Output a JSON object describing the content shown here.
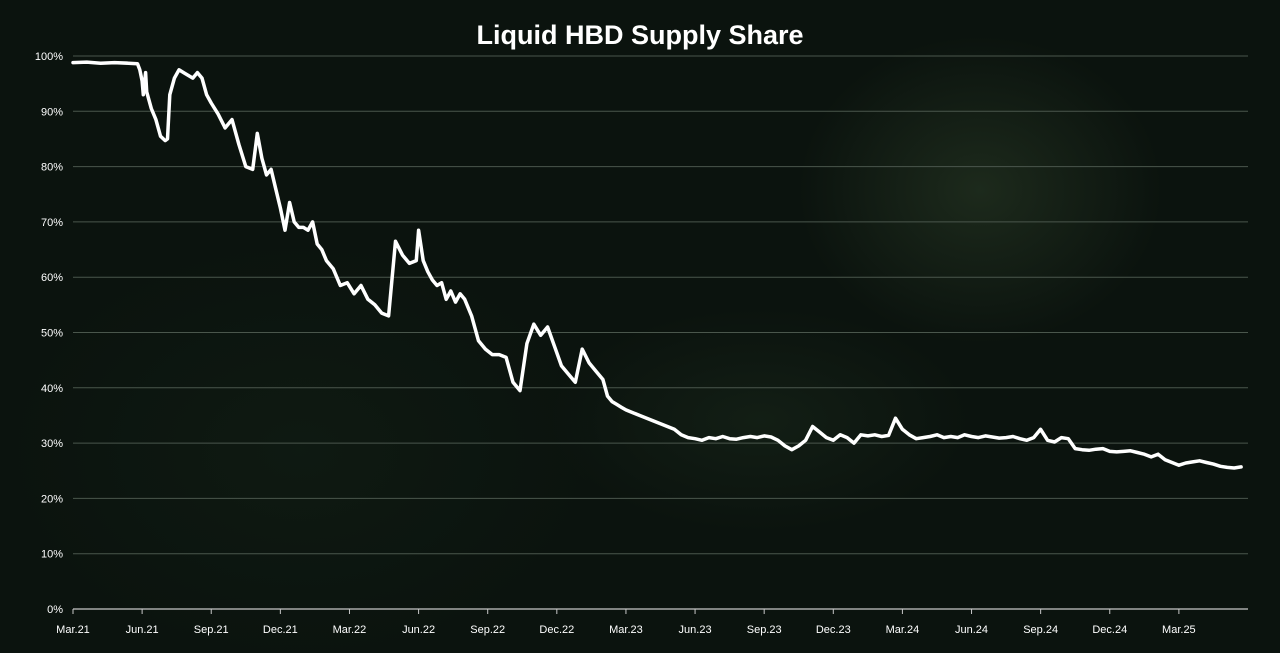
{
  "chart_data": {
    "type": "line",
    "title": "Liquid HBD Supply Share",
    "xlabel": "",
    "ylabel": "",
    "ylim": [
      0,
      100
    ],
    "y_ticks": [
      "0%",
      "10%",
      "20%",
      "30%",
      "40%",
      "50%",
      "60%",
      "70%",
      "80%",
      "90%",
      "100%"
    ],
    "x_ticks": [
      "Mar.21",
      "Jun.21",
      "Sep.21",
      "Dec.21",
      "Mar.22",
      "Jun.22",
      "Sep.22",
      "Dec.22",
      "Mar.23",
      "Jun.23",
      "Sep.23",
      "Dec.23",
      "Mar.24",
      "Jun.24",
      "Sep.24",
      "Dec.24",
      "Mar.25"
    ],
    "x_unit": "months since Mar.21",
    "colors": {
      "line": "#ffffff",
      "grid": "#4a564c",
      "background": "#0b130e"
    },
    "series": [
      {
        "name": "Liquid HBD Supply Share",
        "x": [
          0,
          0.6,
          1.2,
          1.8,
          2.4,
          2.8,
          2.9,
          3.0,
          3.05,
          3.15,
          3.2,
          3.4,
          3.6,
          3.8,
          4.0,
          4.1,
          4.2,
          4.4,
          4.6,
          4.8,
          5.0,
          5.2,
          5.4,
          5.6,
          5.8,
          6.0,
          6.3,
          6.6,
          6.9,
          7.2,
          7.5,
          7.8,
          8.0,
          8.2,
          8.4,
          8.6,
          8.8,
          9.0,
          9.2,
          9.4,
          9.6,
          9.8,
          10.0,
          10.2,
          10.4,
          10.6,
          10.8,
          11.0,
          11.3,
          11.6,
          11.9,
          12.2,
          12.5,
          12.8,
          13.1,
          13.4,
          13.7,
          14.0,
          14.3,
          14.6,
          14.9,
          15.0,
          15.2,
          15.4,
          15.6,
          15.8,
          16.0,
          16.2,
          16.4,
          16.6,
          16.8,
          17.0,
          17.3,
          17.6,
          17.9,
          18.2,
          18.5,
          18.8,
          19.1,
          19.4,
          19.7,
          20.0,
          20.3,
          20.6,
          20.9,
          21.2,
          21.5,
          21.8,
          22.1,
          22.4,
          22.7,
          23.0,
          23.2,
          23.4,
          23.6,
          23.8,
          24.0,
          24.3,
          24.6,
          24.9,
          25.2,
          25.5,
          25.8,
          26.1,
          26.4,
          26.7,
          27.0,
          27.3,
          27.6,
          27.9,
          28.2,
          28.5,
          28.8,
          29.1,
          29.4,
          29.7,
          30.0,
          30.3,
          30.6,
          30.9,
          31.2,
          31.5,
          31.8,
          32.1,
          32.4,
          32.7,
          33.0,
          33.3,
          33.6,
          33.9,
          34.2,
          34.5,
          34.8,
          35.1,
          35.4,
          35.7,
          36.0,
          36.3,
          36.6,
          36.9,
          37.2,
          37.5,
          37.8,
          38.1,
          38.4,
          38.7,
          39.0,
          39.3,
          39.6,
          39.9,
          40.2,
          40.5,
          40.8,
          41.1,
          41.4,
          41.7,
          42.0,
          42.3,
          42.6,
          42.9,
          43.2,
          43.5,
          43.8,
          44.1,
          44.4,
          44.7,
          45.0,
          45.3,
          45.6,
          45.9,
          46.2,
          46.5,
          46.8,
          47.1,
          47.4,
          47.7,
          48.0,
          48.3,
          48.6,
          48.9,
          49.2,
          49.5,
          49.8,
          50.1,
          50.4,
          50.7
        ],
        "values": [
          98.8,
          98.9,
          98.7,
          98.8,
          98.7,
          98.6,
          97.5,
          95.5,
          93.0,
          97.0,
          93.5,
          90.5,
          88.5,
          85.5,
          84.7,
          85.0,
          93.0,
          96.0,
          97.5,
          97.0,
          96.5,
          96.0,
          97.0,
          96.0,
          93.0,
          91.5,
          89.5,
          87.0,
          88.5,
          84.0,
          80.0,
          79.5,
          86.0,
          81.5,
          78.5,
          79.5,
          76.0,
          72.5,
          68.5,
          73.5,
          70.0,
          69.0,
          69.0,
          68.5,
          70.0,
          66.0,
          65.0,
          63.0,
          61.5,
          58.5,
          59.0,
          57.0,
          58.5,
          56.0,
          55.0,
          53.5,
          53.0,
          66.5,
          64.0,
          62.5,
          63.0,
          68.5,
          63.0,
          61.0,
          59.5,
          58.5,
          59.0,
          56.0,
          57.5,
          55.5,
          57.0,
          56.0,
          53.0,
          48.5,
          47.0,
          46.0,
          46.0,
          45.5,
          41.0,
          39.5,
          48.0,
          51.5,
          49.5,
          51.0,
          47.5,
          44.0,
          42.5,
          41.0,
          47.0,
          44.5,
          43.0,
          41.5,
          38.5,
          37.5,
          37.0,
          36.5,
          36.0,
          35.5,
          35.0,
          34.5,
          34.0,
          33.5,
          33.0,
          32.5,
          31.5,
          31.0,
          30.8,
          30.5,
          31.0,
          30.8,
          31.2,
          30.8,
          30.7,
          31.0,
          31.2,
          31.0,
          31.3,
          31.1,
          30.5,
          29.5,
          28.8,
          29.5,
          30.5,
          33.0,
          32.0,
          31.0,
          30.5,
          31.5,
          31.0,
          30.0,
          31.5,
          31.3,
          31.5,
          31.2,
          31.4,
          34.5,
          32.5,
          31.5,
          30.8,
          31.0,
          31.2,
          31.5,
          31.0,
          31.2,
          31.0,
          31.5,
          31.2,
          31.0,
          31.3,
          31.1,
          30.9,
          31.0,
          31.2,
          30.8,
          30.5,
          31.0,
          32.5,
          30.5,
          30.2,
          31.0,
          30.8,
          29.0,
          28.8,
          28.7,
          28.9,
          29.0,
          28.5,
          28.4,
          28.5,
          28.6,
          28.3,
          28.0,
          27.5,
          28.0,
          27.0,
          26.5,
          26.0,
          26.4,
          26.6,
          26.8,
          26.5,
          26.2,
          25.8,
          25.6,
          25.5,
          25.7
        ]
      }
    ]
  }
}
